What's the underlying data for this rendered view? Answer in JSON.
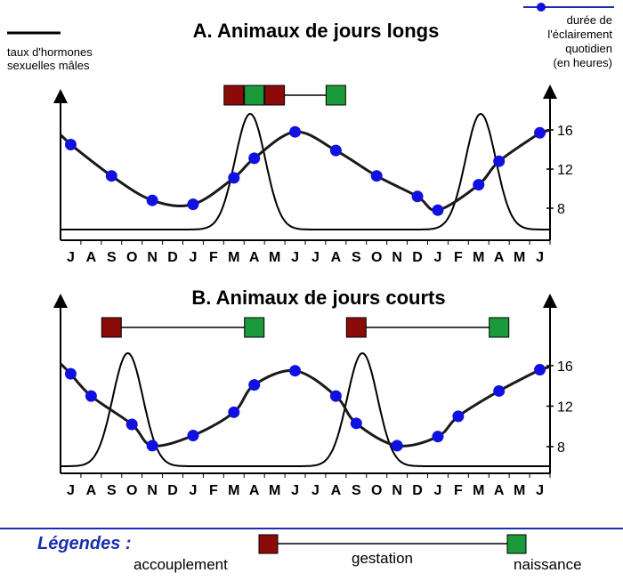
{
  "colors": {
    "hormone_line": "#000000",
    "daylength_line": "#1a1a1a",
    "daylength_points": "#1010e0",
    "mating_box": "#8b0a0a",
    "birth_box": "#1a9a3a",
    "legend_rule": "#1a2fb0",
    "legend_title": "#1a2fb0"
  },
  "legend_top": {
    "hormone_label_line1": "taux d'hormones",
    "hormone_label_line2": "sexuelles mâles",
    "daylength_label_line1": "durée de",
    "daylength_label_line2": "l'éclairement",
    "daylength_label_line3": "quotidien",
    "daylength_label_line4": "(en heures)"
  },
  "legend_bottom": {
    "title": "Légendes :",
    "mating": "accouplement",
    "gestation": "gestation",
    "birth": "naissance"
  },
  "chart_data": [
    {
      "type": "line",
      "title": "A. Animaux de jours longs",
      "categories": [
        "J",
        "A",
        "S",
        "O",
        "N",
        "D",
        "J",
        "F",
        "M",
        "A",
        "M",
        "J",
        "J",
        "A",
        "S",
        "O",
        "N",
        "D",
        "J",
        "F",
        "M",
        "A",
        "M",
        "J"
      ],
      "y_ticks": [
        8,
        12,
        16
      ],
      "ylim": [
        5,
        18
      ],
      "series": [
        {
          "name": "durée de l'éclairement quotidien (en heures)",
          "points": [
            [
              0.5,
              14.5
            ],
            [
              2.5,
              11.3
            ],
            [
              4.5,
              8.8
            ],
            [
              6.5,
              8.4
            ],
            [
              8.5,
              11.1
            ],
            [
              9.5,
              13.1
            ],
            [
              11.5,
              15.8
            ],
            [
              13.5,
              13.9
            ],
            [
              15.5,
              11.3
            ],
            [
              17.5,
              9.2
            ],
            [
              18.5,
              7.8
            ],
            [
              20.5,
              10.4
            ],
            [
              21.5,
              12.8
            ],
            [
              23.5,
              15.7
            ]
          ]
        },
        {
          "name": "taux d'hormones sexuelles mâles",
          "peaks": [
            {
              "x": 9.3,
              "height": 1.0
            },
            {
              "x": 20.6,
              "height": 1.0
            }
          ]
        }
      ],
      "events": [
        {
          "accouplement": "M",
          "naissance": "A"
        },
        {
          "accouplement": "M",
          "naissance": "A"
        }
      ]
    },
    {
      "type": "line",
      "title": "B. Animaux de jours courts",
      "categories": [
        "J",
        "A",
        "S",
        "O",
        "N",
        "D",
        "J",
        "F",
        "M",
        "A",
        "M",
        "J",
        "J",
        "A",
        "S",
        "O",
        "N",
        "D",
        "J",
        "F",
        "M",
        "A",
        "M",
        "J"
      ],
      "y_ticks": [
        8,
        12,
        16
      ],
      "ylim": [
        5,
        18
      ],
      "series": [
        {
          "name": "durée de l'éclairement quotidien (en heures)",
          "points": [
            [
              0.5,
              15.2
            ],
            [
              1.5,
              13.0
            ],
            [
              3.5,
              10.2
            ],
            [
              4.5,
              8.1
            ],
            [
              6.5,
              9.1
            ],
            [
              8.5,
              11.4
            ],
            [
              9.5,
              14.1
            ],
            [
              11.5,
              15.5
            ],
            [
              13.5,
              13.0
            ],
            [
              14.5,
              10.3
            ],
            [
              16.5,
              8.1
            ],
            [
              18.5,
              9.0
            ],
            [
              19.5,
              11.0
            ],
            [
              21.5,
              13.5
            ],
            [
              23.5,
              15.6
            ]
          ]
        },
        {
          "name": "taux d'hormones sexuelles mâles",
          "peaks": [
            {
              "x": 3.3,
              "height": 1.0
            },
            {
              "x": 14.8,
              "height": 1.0
            }
          ]
        }
      ],
      "events": [
        {
          "accouplement": "S",
          "naissance": "A"
        },
        {
          "accouplement": "S",
          "naissance": "A"
        }
      ]
    }
  ]
}
